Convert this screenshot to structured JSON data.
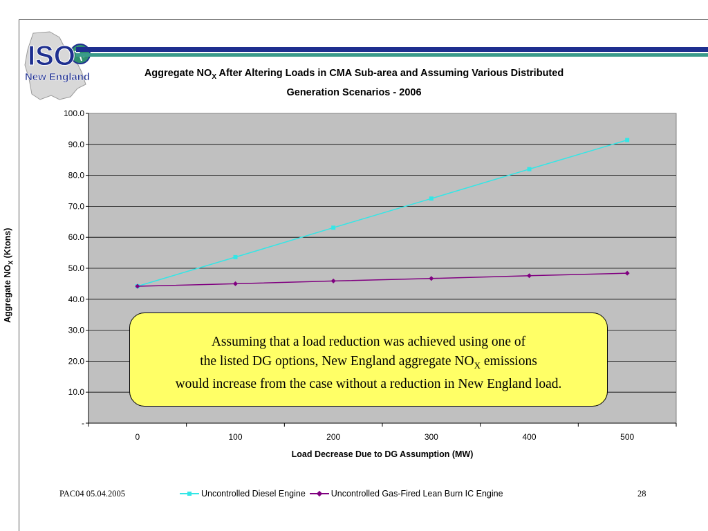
{
  "logo": {
    "line1": "ISO",
    "line2": "New England",
    "icon": "iso-new-england-logo"
  },
  "header": {
    "bar_colors": [
      "#1e2f8f",
      "#3a9a8a"
    ]
  },
  "title": {
    "prefix": "Aggregate NO",
    "subscript": "X",
    "suffix": " After Altering Loads in CMA Sub-area and Assuming Various Distributed",
    "line2": "Generation Scenarios - 2006"
  },
  "axes": {
    "ylabel_prefix": "Aggregate NO",
    "ylabel_subscript": "X",
    "ylabel_suffix": " (Ktons)",
    "xlabel": "Load Decrease Due to DG Assumption (MW)"
  },
  "chart_data": {
    "type": "line",
    "x": [
      0,
      100,
      200,
      300,
      400,
      500
    ],
    "xlim": [
      -50,
      550
    ],
    "ylim": [
      0,
      100
    ],
    "yticks": [
      0,
      10,
      20,
      30,
      40,
      50,
      60,
      70,
      80,
      90,
      100
    ],
    "ytick_labels": [
      "-",
      "10.0",
      "20.0",
      "30.0",
      "40.0",
      "50.0",
      "60.0",
      "70.0",
      "80.0",
      "90.0",
      "100.0"
    ],
    "xticks": [
      0,
      100,
      200,
      300,
      400,
      500
    ],
    "xtick_labels": [
      "0",
      "100",
      "200",
      "300",
      "400",
      "500"
    ],
    "grid": true,
    "plot_background": "#c0c0c0",
    "legend_position": "bottom",
    "series": [
      {
        "name": "Uncontrolled Diesel Engine",
        "color": "#33e6e6",
        "marker": "square",
        "values": [
          44.2,
          53.6,
          63.1,
          72.5,
          82.0,
          91.4
        ]
      },
      {
        "name": "Uncontrolled Gas-Fired Lean Burn IC Engine",
        "color": "#800080",
        "marker": "diamond",
        "values": [
          44.2,
          45.0,
          45.9,
          46.7,
          47.6,
          48.4
        ]
      }
    ]
  },
  "callout": {
    "line1": "Assuming that a load reduction was achieved using one of",
    "line2_prefix": "the listed DG options, New England aggregate NO",
    "line2_subscript": "X",
    "line2_suffix": " emissions",
    "line3": "would increase from the case without a reduction in New England load."
  },
  "footer": {
    "left": "PAC04 05.04.2005",
    "page_number": "28"
  }
}
